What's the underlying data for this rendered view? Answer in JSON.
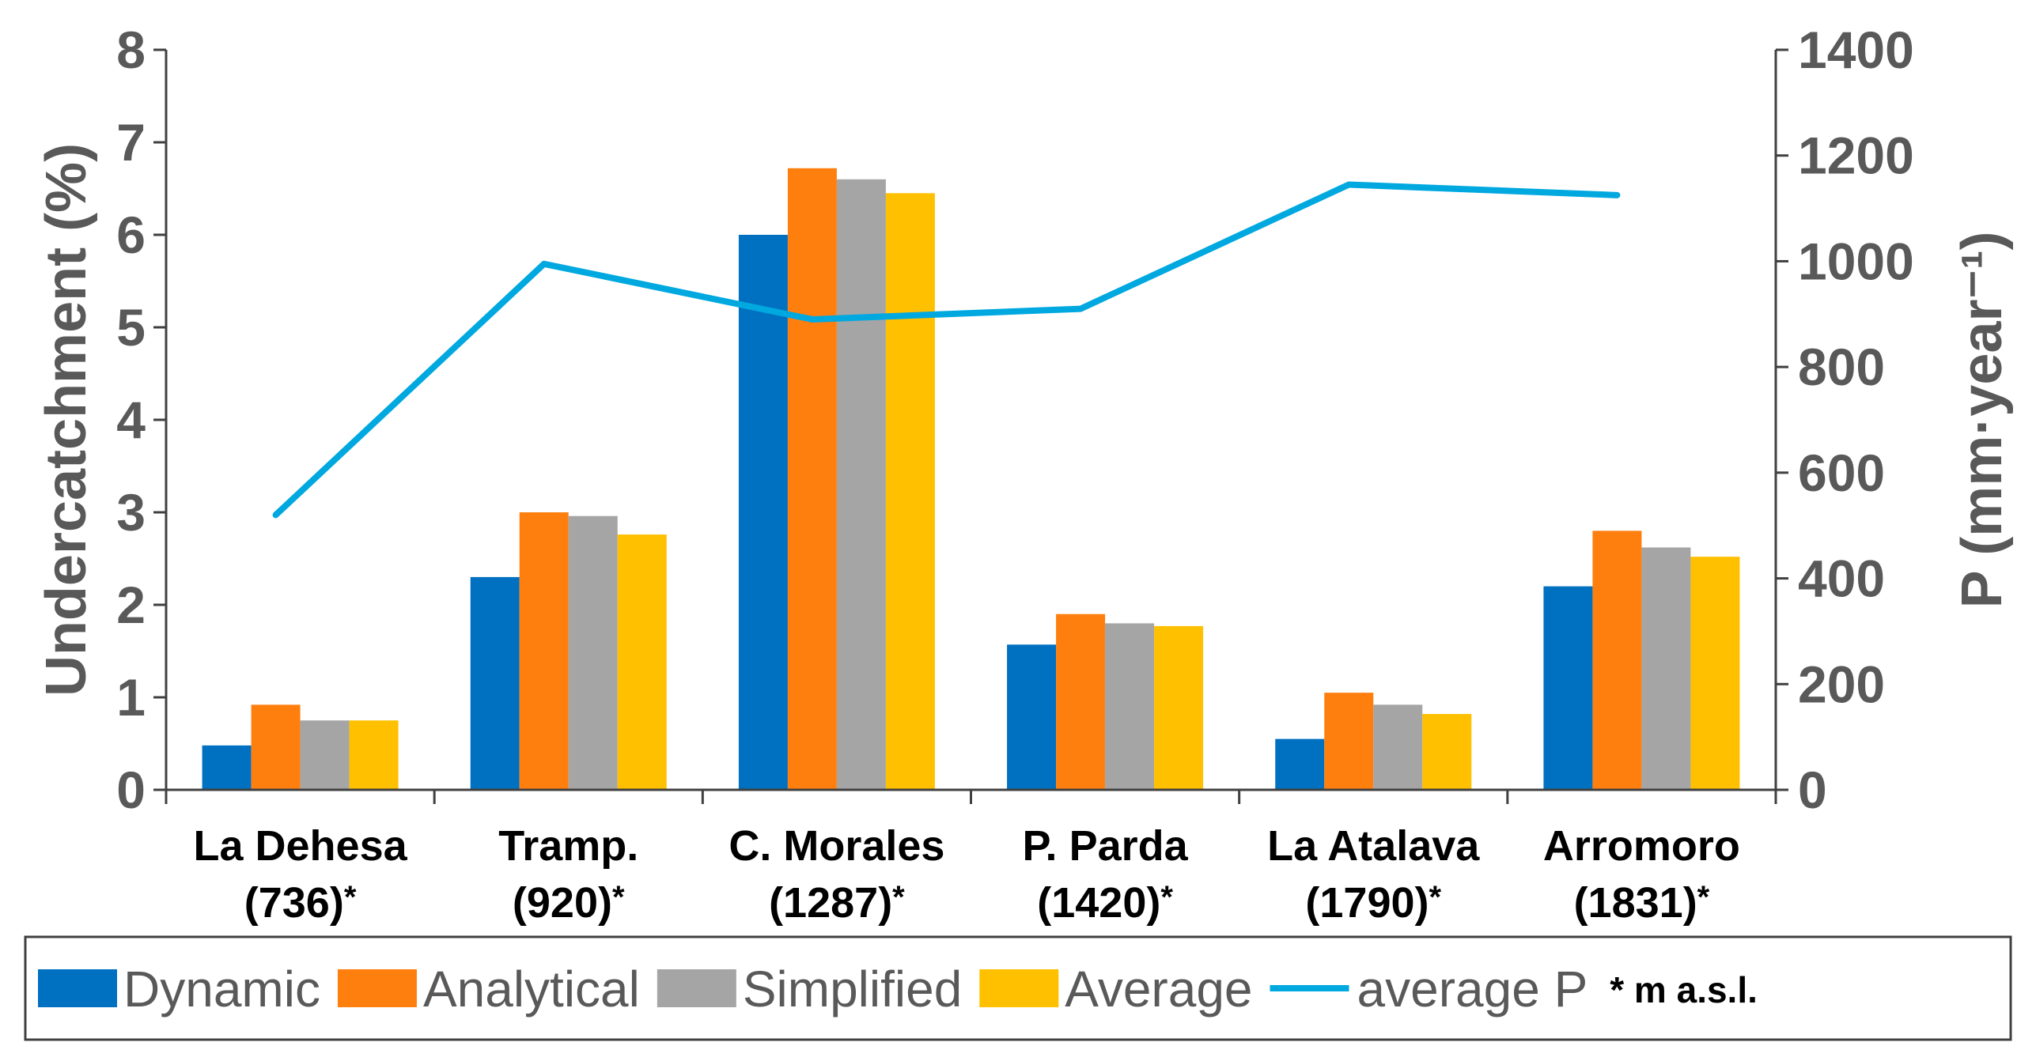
{
  "chart_data": {
    "type": "bar",
    "categories": [
      {
        "name": "La Dehesa",
        "altitude": "(736)",
        "marker": "*"
      },
      {
        "name": "Tramp.",
        "altitude": "(920)",
        "marker": "*"
      },
      {
        "name": "C. Morales",
        "altitude": "(1287)",
        "marker": "*"
      },
      {
        "name": "P. Parda",
        "altitude": "(1420)",
        "marker": "*"
      },
      {
        "name": "La Atalava",
        "altitude": "(1790)",
        "marker": "*"
      },
      {
        "name": "Arromoro",
        "altitude": "(1831)",
        "marker": "*"
      }
    ],
    "series": [
      {
        "name": "Dynamic",
        "color": "#0070C0",
        "values": [
          0.48,
          2.3,
          6.0,
          1.57,
          0.55,
          2.2
        ]
      },
      {
        "name": "Analytical",
        "color": "#FF7F0E",
        "values": [
          0.92,
          3.0,
          6.72,
          1.9,
          1.05,
          2.8
        ]
      },
      {
        "name": "Simplified",
        "color": "#A5A5A5",
        "values": [
          0.75,
          2.96,
          6.6,
          1.8,
          0.92,
          2.62
        ]
      },
      {
        "name": "Average",
        "color": "#FFC000",
        "values": [
          0.75,
          2.76,
          6.45,
          1.77,
          0.82,
          2.52
        ]
      }
    ],
    "line_series": {
      "name": "average P",
      "color": "#00A8E0",
      "axis": "right",
      "values": [
        520,
        995,
        890,
        910,
        1145,
        1125
      ]
    },
    "ylabel": "Undercatchment (%)",
    "ylim": [
      0,
      8
    ],
    "yticks": [
      "0",
      "1",
      "2",
      "3",
      "4",
      "5",
      "6",
      "7",
      "8"
    ],
    "y2label": "P (mm·year⁻¹)",
    "y2lim": [
      0,
      1400
    ],
    "y2ticks": [
      "0",
      "200",
      "400",
      "600",
      "800",
      "1000",
      "1200",
      "1400"
    ],
    "legend_note": "* m a.s.l.",
    "legend_position": "bottom"
  }
}
